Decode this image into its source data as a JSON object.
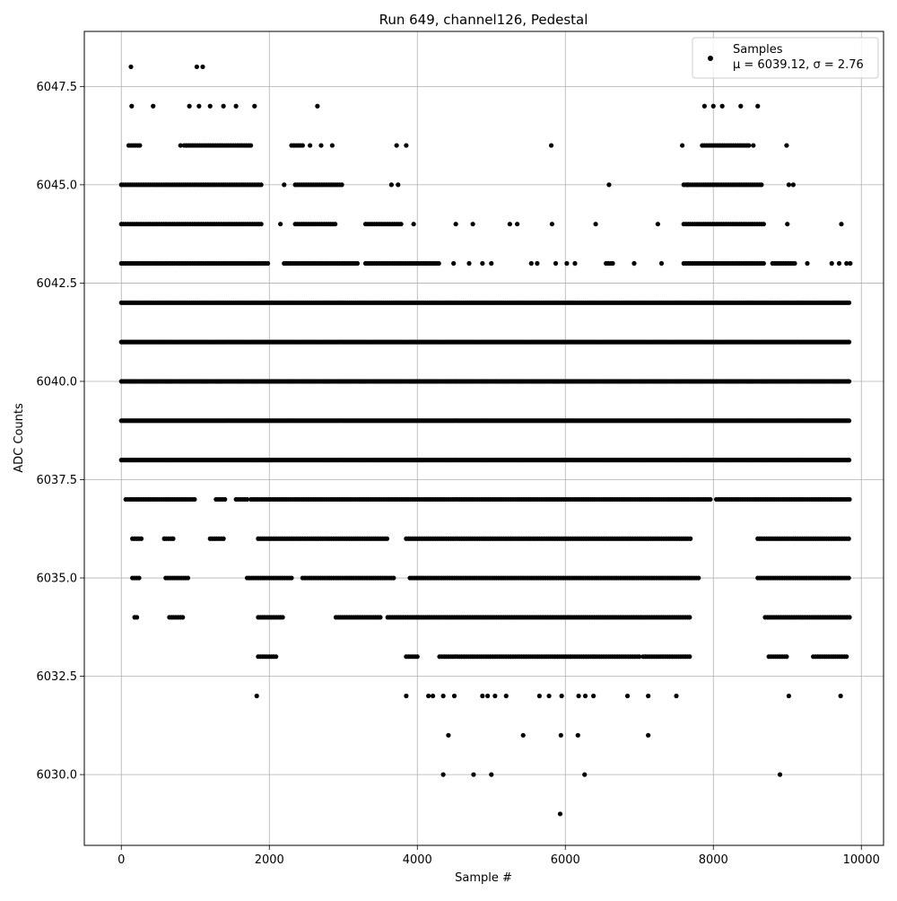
{
  "chart_data": {
    "type": "scatter",
    "title": "Run 649, channel126, Pedestal",
    "xlabel": "Sample #",
    "ylabel": "ADC Counts",
    "xlim": [
      -500,
      10300
    ],
    "ylim": [
      6028.2,
      6048.9
    ],
    "xticks": [
      0,
      2000,
      4000,
      6000,
      8000,
      10000
    ],
    "xtick_labels": [
      "0",
      "2000",
      "4000",
      "6000",
      "8000",
      "10000"
    ],
    "yticks": [
      6030.0,
      6032.5,
      6035.0,
      6037.5,
      6040.0,
      6042.5,
      6045.0,
      6047.5
    ],
    "ytick_labels": [
      "6030.0",
      "6032.5",
      "6035.0",
      "6037.5",
      "6040.0",
      "6042.5",
      "6045.0",
      "6047.5"
    ],
    "grid": true,
    "legend_position": "top-right",
    "legend": {
      "name": "Samples",
      "stats": "μ = 6039.12, σ = 2.76"
    },
    "marker_color": "#000000",
    "x_range": [
      0,
      9850
    ],
    "dense_levels": [
      6038,
      6039,
      6040,
      6041,
      6042
    ],
    "series": [
      {
        "name": "Samples",
        "points": [
          [
            130,
            6048
          ],
          [
            1020,
            6048
          ],
          [
            1100,
            6048
          ],
          [
            140,
            6047
          ],
          [
            430,
            6047
          ],
          [
            920,
            6047
          ],
          [
            1050,
            6047
          ],
          [
            1200,
            6047
          ],
          [
            1380,
            6047
          ],
          [
            1550,
            6047
          ],
          [
            1800,
            6047
          ],
          [
            2650,
            6047
          ],
          [
            7880,
            6047
          ],
          [
            8000,
            6047
          ],
          [
            8120,
            6047
          ],
          [
            8370,
            6047
          ],
          [
            8600,
            6047
          ],
          [
            5810,
            6046
          ],
          [
            3720,
            6046
          ],
          [
            3850,
            6046
          ],
          [
            2700,
            6046
          ],
          [
            2850,
            6046
          ],
          [
            2550,
            6046
          ],
          [
            800,
            6046
          ],
          [
            7580,
            6046
          ],
          [
            8990,
            6046
          ],
          [
            8540,
            6046
          ],
          [
            6590,
            6045
          ],
          [
            3650,
            6045
          ],
          [
            3740,
            6045
          ],
          [
            2200,
            6045
          ],
          [
            7650,
            6045
          ],
          [
            9020,
            6045
          ],
          [
            9080,
            6045
          ],
          [
            4520,
            6044
          ],
          [
            4750,
            6044
          ],
          [
            5250,
            6044
          ],
          [
            5350,
            6044
          ],
          [
            5820,
            6044
          ],
          [
            6410,
            6044
          ],
          [
            7250,
            6044
          ],
          [
            9000,
            6044
          ],
          [
            9730,
            6044
          ],
          [
            3950,
            6044
          ],
          [
            2150,
            6044
          ],
          [
            4490,
            6043
          ],
          [
            4700,
            6043
          ],
          [
            4880,
            6043
          ],
          [
            5000,
            6043
          ],
          [
            5540,
            6043
          ],
          [
            5620,
            6043
          ],
          [
            5870,
            6043
          ],
          [
            6020,
            6043
          ],
          [
            6130,
            6043
          ],
          [
            6930,
            6043
          ],
          [
            7300,
            6043
          ],
          [
            9270,
            6043
          ],
          [
            9600,
            6043
          ],
          [
            9700,
            6043
          ],
          [
            9800,
            6043
          ],
          [
            9850,
            6043
          ],
          [
            4350,
            6030
          ],
          [
            4760,
            6030
          ],
          [
            5000,
            6030
          ],
          [
            6260,
            6030
          ],
          [
            8900,
            6030
          ],
          [
            4420,
            6031
          ],
          [
            5430,
            6031
          ],
          [
            5940,
            6031
          ],
          [
            6170,
            6031
          ],
          [
            7120,
            6031
          ],
          [
            1830,
            6032
          ],
          [
            3850,
            6032
          ],
          [
            4150,
            6032
          ],
          [
            4210,
            6032
          ],
          [
            4350,
            6032
          ],
          [
            4500,
            6032
          ],
          [
            4880,
            6032
          ],
          [
            4950,
            6032
          ],
          [
            5050,
            6032
          ],
          [
            5200,
            6032
          ],
          [
            5650,
            6032
          ],
          [
            5780,
            6032
          ],
          [
            5950,
            6032
          ],
          [
            6180,
            6032
          ],
          [
            6270,
            6032
          ],
          [
            6380,
            6032
          ],
          [
            6840,
            6032
          ],
          [
            7120,
            6032
          ],
          [
            7500,
            6032
          ],
          [
            9020,
            6032
          ],
          [
            9720,
            6032
          ],
          [
            5930,
            6029
          ]
        ]
      }
    ]
  }
}
